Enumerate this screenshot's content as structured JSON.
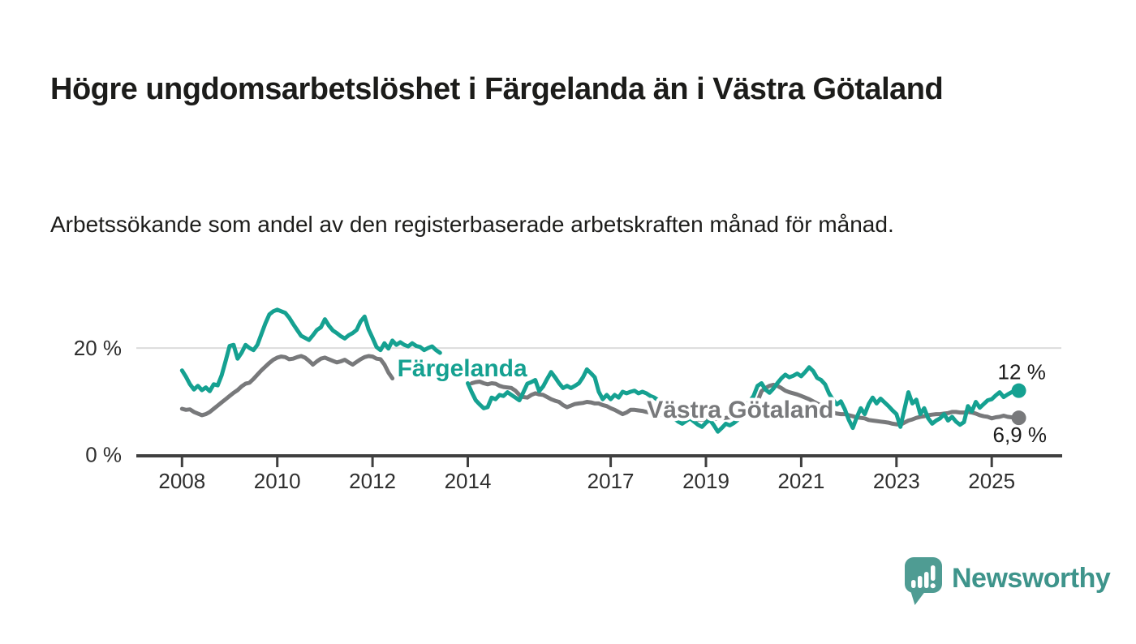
{
  "header": {
    "title": "Högre ungdomsarbetslöshet i Färgelanda än i Västra Götaland",
    "subtitle": "Arbetssökande som andel av den registerbaserade arbetskraften månad för månad."
  },
  "chart_data": {
    "type": "line",
    "unit": "%",
    "x_start": 2008.0,
    "x_step": "monthly",
    "x_ticks": [
      2008,
      2010,
      2012,
      2014,
      2017,
      2019,
      2021,
      2023,
      2025
    ],
    "y_axis_labels": [
      {
        "value": 0,
        "label": "0 %"
      },
      {
        "value": 20,
        "label": "20 %"
      }
    ],
    "ylim": [
      0,
      29
    ],
    "grid": "horizontal line at 20 % only",
    "legend": "inline labels on lines",
    "series": [
      {
        "name": "Färgelanda",
        "color": "#15A191",
        "end_label": "12 %",
        "label_pos": {
          "x": 2012.52,
          "y": 14.7
        },
        "values": [
          15.8,
          14.6,
          13.2,
          12.2,
          12.9,
          12.1,
          12.6,
          11.9,
          13.2,
          13.0,
          14.9,
          17.6,
          20.4,
          20.6,
          18.0,
          19.1,
          20.6,
          20.0,
          19.6,
          20.6,
          22.6,
          24.6,
          26.3,
          26.9,
          27.2,
          26.9,
          26.6,
          25.7,
          24.5,
          23.4,
          22.3,
          21.9,
          21.5,
          22.4,
          23.4,
          23.9,
          25.4,
          24.2,
          23.3,
          22.8,
          22.2,
          21.8,
          22.4,
          22.8,
          23.4,
          25.0,
          25.9,
          23.5,
          21.9,
          20.2,
          19.6,
          20.9,
          19.9,
          21.4,
          20.6,
          21.1,
          20.6,
          20.3,
          20.9,
          20.4,
          20.2,
          19.6,
          20.0,
          20.3,
          19.6,
          19.1,
          null,
          null,
          null,
          null,
          null,
          null,
          13.4,
          11.7,
          10.2,
          9.4,
          8.7,
          8.9,
          10.7,
          10.4,
          11.2,
          11.0,
          11.7,
          11.2,
          10.7,
          10.2,
          11.7,
          13.3,
          13.6,
          14.0,
          11.9,
          12.8,
          14.2,
          15.5,
          14.5,
          13.4,
          12.5,
          12.9,
          12.5,
          12.9,
          13.4,
          14.5,
          16.0,
          15.3,
          14.5,
          11.8,
          10.4,
          11.2,
          10.4,
          11.2,
          10.7,
          11.8,
          11.5,
          11.8,
          12.0,
          11.5,
          11.8,
          11.5,
          11.0,
          10.7,
          10.2,
          9.5,
          8.5,
          7.5,
          6.8,
          6.2,
          5.8,
          6.3,
          6.8,
          6.2,
          5.6,
          5.2,
          6.0,
          6.5,
          5.5,
          4.3,
          5.0,
          5.8,
          5.5,
          5.9,
          6.5,
          7.5,
          8.8,
          10.0,
          11.0,
          12.9,
          13.4,
          12.2,
          11.6,
          12.4,
          13.4,
          14.3,
          15.0,
          14.5,
          14.8,
          15.2,
          14.7,
          15.5,
          16.4,
          15.7,
          14.4,
          14.0,
          13.2,
          11.5,
          10.3,
          9.4,
          10.0,
          8.5,
          6.5,
          5.0,
          7.0,
          8.7,
          7.6,
          9.5,
          10.7,
          9.6,
          10.5,
          9.8,
          9.1,
          8.3,
          7.6,
          5.2,
          8.5,
          11.7,
          9.6,
          10.3,
          7.6,
          8.7,
          6.8,
          5.8,
          6.4,
          6.8,
          7.6,
          6.4,
          7.1,
          6.2,
          5.6,
          6.1,
          9.1,
          8.1,
          9.9,
          8.8,
          9.5,
          10.2,
          10.4,
          11.1,
          11.7,
          10.8,
          11.3,
          11.7,
          12.0
        ]
      },
      {
        "name": "Västra Götaland",
        "color": "#78797B",
        "end_label": "6,9 %",
        "label_pos": {
          "x": 2017.76,
          "y": 6.92
        },
        "values": [
          8.6,
          8.4,
          8.5,
          8.0,
          7.7,
          7.4,
          7.6,
          8.0,
          8.6,
          9.2,
          9.8,
          10.4,
          11.0,
          11.6,
          12.1,
          12.8,
          13.3,
          13.5,
          14.2,
          15.0,
          15.8,
          16.5,
          17.2,
          17.8,
          18.2,
          18.4,
          18.3,
          17.9,
          18.0,
          18.3,
          18.5,
          18.2,
          17.6,
          16.9,
          17.5,
          18.0,
          18.2,
          17.9,
          17.6,
          17.3,
          17.5,
          17.8,
          17.3,
          16.9,
          17.4,
          17.9,
          18.3,
          18.5,
          18.4,
          18.0,
          17.9,
          16.9,
          15.4,
          14.3,
          null,
          null,
          null,
          null,
          null,
          null,
          null,
          null,
          null,
          null,
          null,
          null,
          null,
          null,
          null,
          null,
          null,
          null,
          null,
          13.4,
          13.6,
          13.7,
          13.4,
          13.2,
          13.4,
          13.3,
          12.9,
          12.7,
          12.6,
          12.5,
          12.0,
          11.2,
          10.8,
          10.7,
          11.2,
          11.5,
          11.3,
          11.2,
          10.8,
          10.4,
          10.1,
          9.9,
          9.3,
          8.9,
          9.2,
          9.5,
          9.6,
          9.7,
          9.9,
          9.8,
          9.6,
          9.6,
          9.3,
          9.1,
          8.7,
          8.4,
          8.0,
          7.6,
          7.9,
          8.4,
          8.4,
          8.3,
          8.2,
          8.0,
          7.9,
          7.8,
          7.6,
          7.4,
          7.3,
          7.2,
          7.0,
          6.9,
          6.8,
          6.8,
          6.7,
          6.7,
          6.6,
          6.6,
          6.6,
          6.6,
          6.7,
          6.7,
          6.8,
          6.9,
          7.0,
          7.1,
          7.2,
          7.4,
          7.6,
          8.0,
          9.0,
          10.0,
          11.9,
          12.5,
          12.9,
          13.1,
          12.9,
          12.5,
          12.0,
          11.7,
          11.5,
          11.3,
          11.0,
          10.7,
          10.4,
          10.0,
          9.6,
          9.2,
          8.8,
          8.3,
          7.9,
          7.7,
          7.6,
          7.6,
          7.4,
          7.2,
          7.0,
          6.9,
          6.8,
          6.5,
          6.4,
          6.3,
          6.2,
          6.1,
          6.0,
          5.8,
          5.7,
          5.6,
          6.0,
          6.4,
          6.6,
          6.9,
          7.1,
          7.2,
          7.4,
          7.5,
          7.6,
          7.6,
          7.7,
          7.8,
          8.0,
          8.0,
          7.9,
          7.9,
          8.0,
          7.9,
          7.7,
          7.4,
          7.2,
          7.1,
          6.8,
          7.0,
          7.1,
          7.3,
          7.1,
          7.0,
          6.9
        ]
      }
    ]
  },
  "footer": {
    "brand": "Newsworthy"
  }
}
